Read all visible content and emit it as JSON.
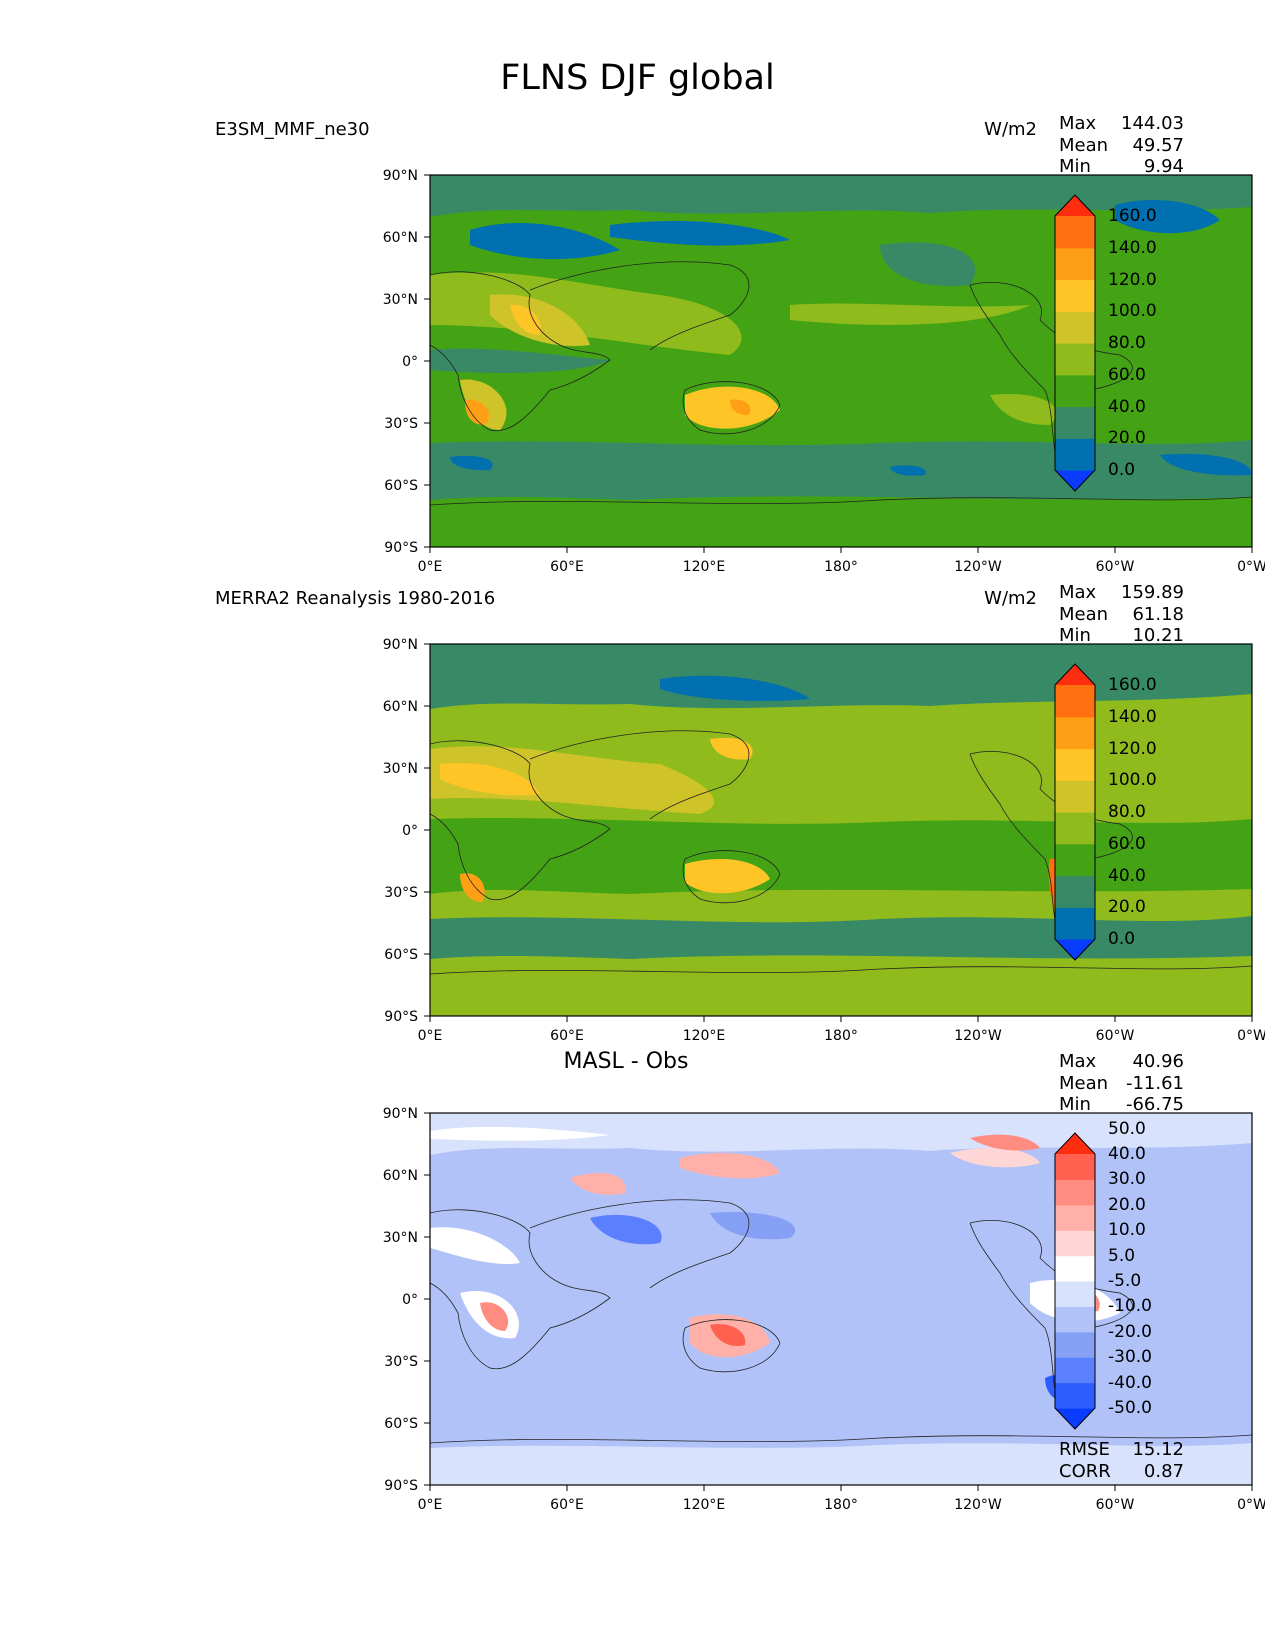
{
  "figure": {
    "title": "FLNS DJF global"
  },
  "axes": {
    "lat_ticks": [
      "90°N",
      "60°N",
      "30°N",
      "0°",
      "30°S",
      "60°S",
      "90°S"
    ],
    "lon_ticks": [
      "0°E",
      "60°E",
      "120°E",
      "180°",
      "120°W",
      "60°W",
      "0°W"
    ]
  },
  "panels": [
    {
      "name": "E3SM_MMF_ne30",
      "units": "W/m2",
      "stats": {
        "max_label": "Max",
        "max": "144.03",
        "mean_label": "Mean",
        "mean": "49.57",
        "min_label": "Min",
        "min": "9.94"
      },
      "colorbar": {
        "colors": [
          "#0a3cff",
          "#0070b0",
          "#378a65",
          "#43a314",
          "#8fbb1c",
          "#cfc32a",
          "#ffc425",
          "#ff9f15",
          "#ff7010",
          "#ff2d10"
        ],
        "labels": [
          "0.0",
          "20.0",
          "40.0",
          "60.0",
          "80.0",
          "100.0",
          "120.0",
          "140.0",
          "160.0"
        ]
      }
    },
    {
      "name": "MERRA2 Reanalysis 1980-2016",
      "units": "W/m2",
      "stats": {
        "max_label": "Max",
        "max": "159.89",
        "mean_label": "Mean",
        "mean": "61.18",
        "min_label": "Min",
        "min": "10.21"
      },
      "colorbar": {
        "colors": [
          "#0a3cff",
          "#0070b0",
          "#378a65",
          "#43a314",
          "#8fbb1c",
          "#cfc32a",
          "#ffc425",
          "#ff9f15",
          "#ff7010",
          "#ff2d10"
        ],
        "labels": [
          "0.0",
          "20.0",
          "40.0",
          "60.0",
          "80.0",
          "100.0",
          "120.0",
          "140.0",
          "160.0"
        ]
      }
    },
    {
      "name": "MASL - Obs",
      "units": "",
      "stats": {
        "max_label": "Max",
        "max": "40.96",
        "mean_label": "Mean",
        "mean": "-11.61",
        "min_label": "Min",
        "min": "-66.75"
      },
      "errors": {
        "rmse_label": "RMSE",
        "rmse": "15.12",
        "corr_label": "CORR",
        "corr": "0.87"
      },
      "colorbar": {
        "colors": [
          "#0a3cff",
          "#2d5cff",
          "#5a7fff",
          "#86a0f5",
          "#b0c2f8",
          "#d8e2fc",
          "#ffffff",
          "#ffd6d6",
          "#ffb0a8",
          "#ff8c80",
          "#ff6050",
          "#ff2d10"
        ],
        "labels": [
          "-50.0",
          "-40.0",
          "-30.0",
          "-20.0",
          "-10.0",
          "-5.0",
          "5.0",
          "10.0",
          "20.0",
          "30.0",
          "40.0",
          "50.0"
        ]
      }
    }
  ]
}
